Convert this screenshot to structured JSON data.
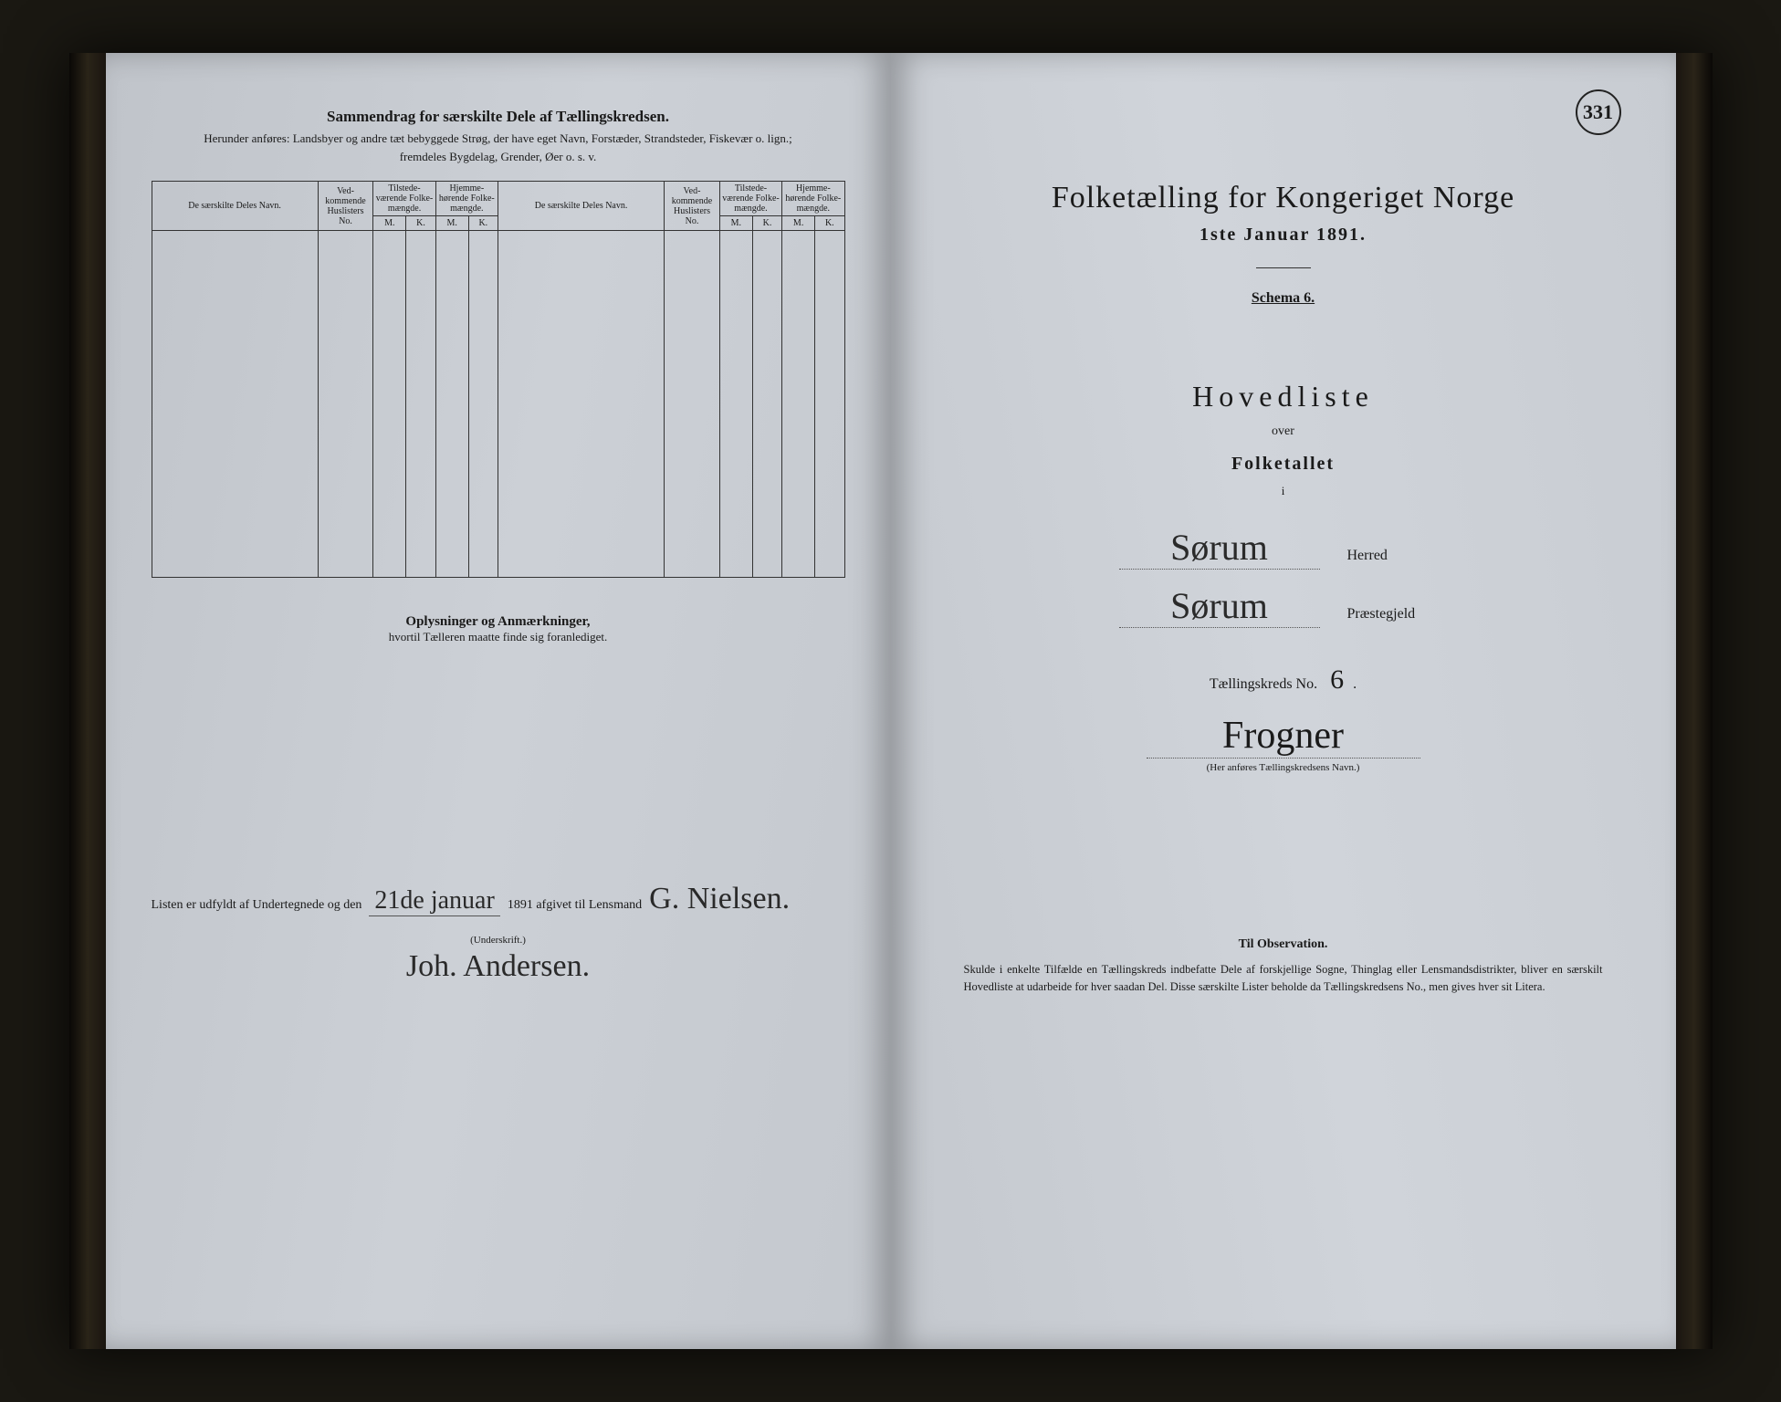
{
  "page_number": "331",
  "left": {
    "title": "Sammendrag for særskilte Dele af Tællingskredsen.",
    "subtitle1": "Herunder anføres: Landsbyer og andre tæt bebyggede Strøg, der have eget Navn, Forstæder, Strandsteder, Fiskevær o. lign.;",
    "subtitle2": "fremdeles Bygdelag, Grender, Øer o. s. v.",
    "cols": {
      "name": "De særskilte Deles Navn.",
      "ved": "Ved-kommende Huslisters No.",
      "tilstede": "Tilstede-værende Folke-mængde.",
      "hjemme": "Hjemme-hørende Folke-mængde.",
      "m": "M.",
      "k": "K."
    },
    "oplysninger_title": "Oplysninger og Anmærkninger,",
    "oplysninger_sub": "hvortil Tælleren maatte finde sig foranlediget.",
    "sign_prefix": "Listen er udfyldt af Undertegnede og den",
    "sign_date": "21de januar",
    "sign_year": "1891 afgivet til Lensmand",
    "sign_name": "G. Nielsen.",
    "underskrift": "(Underskrift.)",
    "sign_name2": "Joh. Andersen."
  },
  "right": {
    "title": "Folketælling for Kongeriget Norge",
    "date": "1ste Januar 1891.",
    "schema": "Schema 6.",
    "hovedliste": "Hovedliste",
    "over": "over",
    "folketallet": "Folketallet",
    "i": "i",
    "herred_value": "Sørum",
    "herred_label": "Herred",
    "praest_value": "Sørum",
    "praest_label": "Præstegjeld",
    "kreds_label": "Tællingskreds No.",
    "kreds_no": "6",
    "kreds_name": "Frogner",
    "kreds_hint": "(Her anføres Tællingskredsens Navn.)",
    "obs_title": "Til Observation.",
    "obs_body": "Skulde i enkelte Tilfælde en Tællingskreds indbefatte Dele af forskjellige Sogne, Thinglag eller Lensmandsdistrikter, bliver en særskilt Hovedliste at udarbeide for hver saadan Del. Disse særskilte Lister beholde da Tællingskredsens No., men gives hver sit Litera."
  },
  "colors": {
    "paper": "#ccd0d6",
    "ink": "#1a1a1a",
    "background": "#1a1812"
  }
}
